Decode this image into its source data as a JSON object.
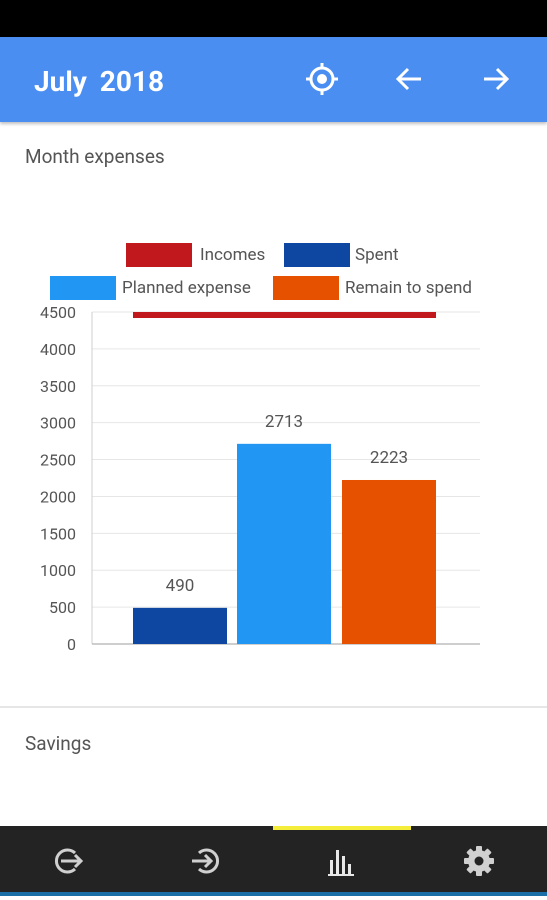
{
  "app_bar": {
    "month": "July",
    "year": "2018",
    "icons": [
      "current-month-icon",
      "arrow-left-icon",
      "arrow-right-icon"
    ]
  },
  "month_expenses": {
    "title": "Month expenses"
  },
  "savings": {
    "title": "Savings"
  },
  "bottom_nav": {
    "items": [
      "expenses-out-icon",
      "incomes-in-icon",
      "statistics-icon",
      "settings-icon"
    ],
    "active": "statistics-icon"
  },
  "colors": {
    "app_bar": "#4a8ef2",
    "incomes": "#c0181c",
    "spent": "#0d47a1",
    "planned": "#2196f3",
    "remain": "#e65100",
    "nav_indicator": "#f4ee3a",
    "nav_bg": "#232323"
  },
  "chart_data": {
    "type": "bar",
    "title": "",
    "xlabel": "",
    "ylabel": "",
    "ylim": [
      0,
      4500
    ],
    "yticks": [
      0,
      500,
      1000,
      1500,
      2000,
      2500,
      3000,
      3500,
      4000,
      4500
    ],
    "grid": true,
    "legend_position": "top",
    "series": [
      {
        "name": "Incomes",
        "value": 4500,
        "color": "#c0181c",
        "show_label": false
      },
      {
        "name": "Spent",
        "value": 490,
        "color": "#0d47a1",
        "show_label": true
      },
      {
        "name": "Planned expense",
        "value": 2713,
        "color": "#2196f3",
        "show_label": true
      },
      {
        "name": "Remain to spend",
        "value": 2223,
        "color": "#e65100",
        "show_label": true
      }
    ]
  }
}
